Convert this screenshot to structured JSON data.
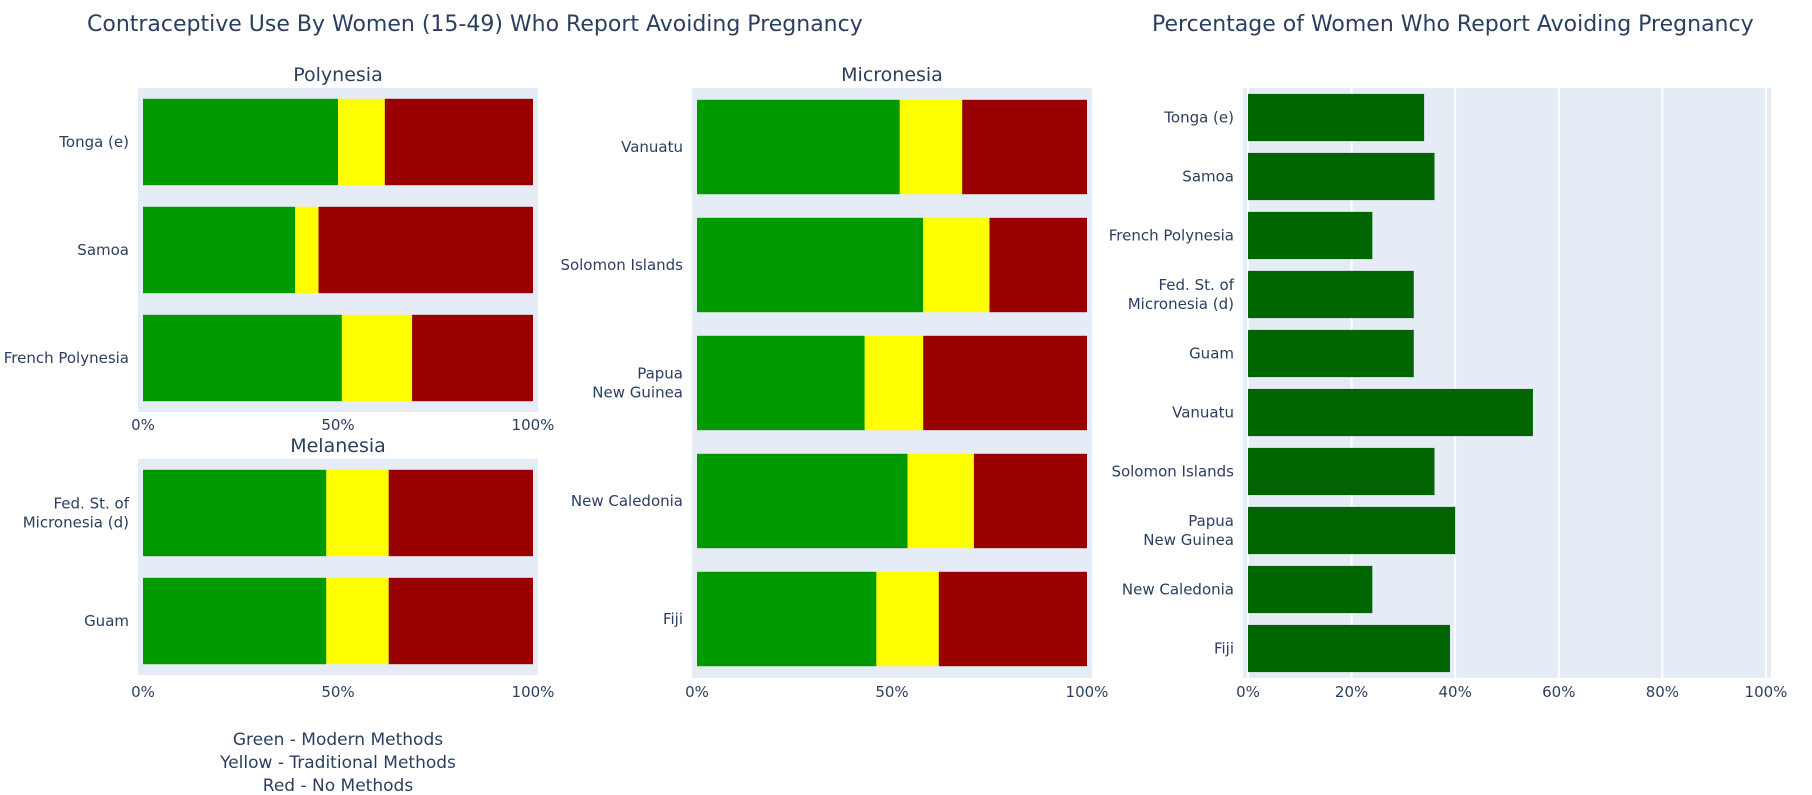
{
  "titles": {
    "left": "Contraceptive Use By Women (15-49) Who Report Avoiding Pregnancy",
    "right": "Percentage of Women Who Report Avoiding Pregnancy"
  },
  "legend": {
    "line1": "Green - Modern Methods",
    "line2": "Yellow - Traditional Methods",
    "line3": "Red - No Methods"
  },
  "colors": {
    "modern": "#009900",
    "traditional": "#ffff00",
    "none": "#990000",
    "avoid": "#006400",
    "plot_bg": "#e5ecf6",
    "text": "#2a3f5f"
  },
  "chart_data": [
    {
      "type": "bar",
      "orientation": "horizontal",
      "stacked": "percent",
      "title": "Polynesia",
      "categories": [
        "Tonga (e)",
        "Samoa",
        "French Polynesia"
      ],
      "series": [
        {
          "name": "Modern Methods",
          "values": [
            50,
            39,
            51
          ]
        },
        {
          "name": "Traditional Methods",
          "values": [
            12,
            6,
            18
          ]
        },
        {
          "name": "No Methods",
          "values": [
            38,
            55,
            31
          ]
        }
      ],
      "xlim": [
        0,
        100
      ],
      "tick_labels": [
        "0%",
        "50%",
        "100%"
      ]
    },
    {
      "type": "bar",
      "orientation": "horizontal",
      "stacked": "percent",
      "title": "Melanesia",
      "categories": [
        "Fed. St. of\nMicronesia (d)",
        "Guam"
      ],
      "series": [
        {
          "name": "Modern Methods",
          "values": [
            47,
            47
          ]
        },
        {
          "name": "Traditional Methods",
          "values": [
            16,
            16
          ]
        },
        {
          "name": "No Methods",
          "values": [
            37,
            37
          ]
        }
      ],
      "xlim": [
        0,
        100
      ],
      "tick_labels": [
        "0%",
        "50%",
        "100%"
      ]
    },
    {
      "type": "bar",
      "orientation": "horizontal",
      "stacked": "percent",
      "title": "Micronesia",
      "categories": [
        "Vanuatu",
        "Solomon Islands",
        "Papua\nNew Guinea",
        "New Caledonia",
        "Fiji"
      ],
      "series": [
        {
          "name": "Modern Methods",
          "values": [
            52,
            58,
            43,
            54,
            46
          ]
        },
        {
          "name": "Traditional Methods",
          "values": [
            16,
            17,
            15,
            17,
            16
          ]
        },
        {
          "name": "No Methods",
          "values": [
            32,
            25,
            42,
            29,
            38
          ]
        }
      ],
      "xlim": [
        0,
        100
      ],
      "tick_labels": [
        "0%",
        "50%",
        "100%"
      ]
    },
    {
      "type": "bar",
      "orientation": "horizontal",
      "title": "Percentage of Women Who Report Avoiding Pregnancy",
      "categories": [
        "Tonga (e)",
        "Samoa",
        "French Polynesia",
        "Fed. St. of\nMicronesia (d)",
        "Guam",
        "Vanuatu",
        "Solomon Islands",
        "Papua\nNew Guinea",
        "New Caledonia",
        "Fiji"
      ],
      "values": [
        34,
        36,
        24,
        32,
        32,
        55,
        36,
        40,
        24,
        39
      ],
      "xlim": [
        0,
        100
      ],
      "tick_labels": [
        "0%",
        "20%",
        "40%",
        "60%",
        "80%",
        "100%"
      ],
      "grid": true
    }
  ]
}
